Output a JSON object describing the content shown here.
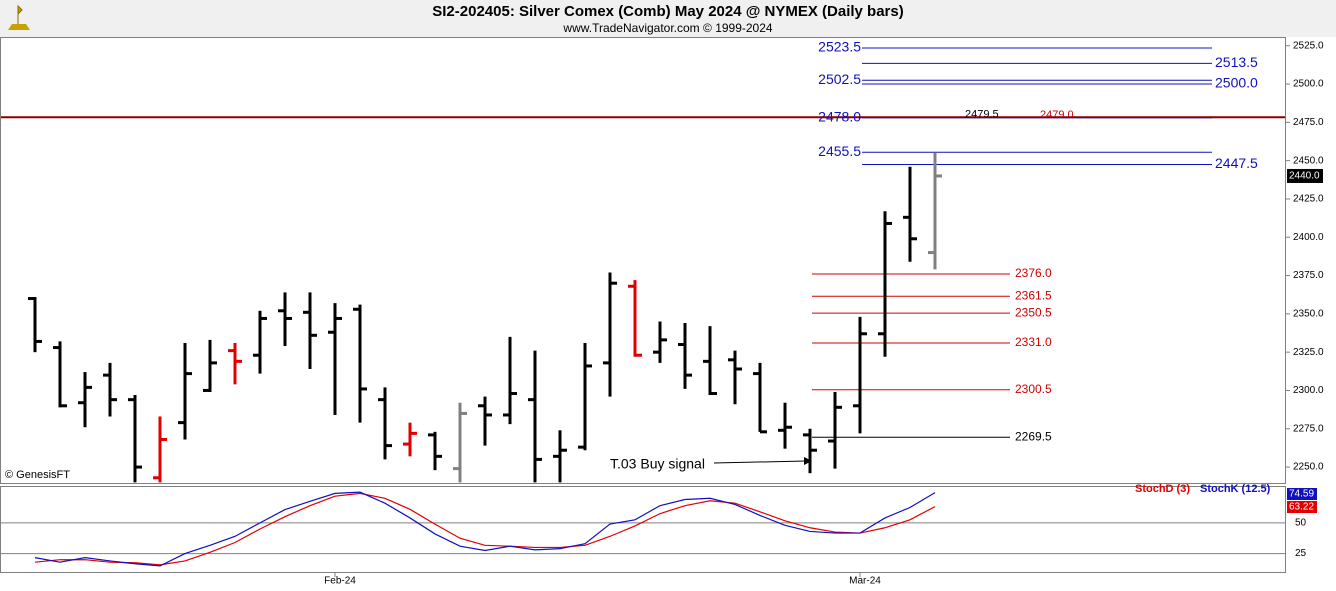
{
  "chart_data": [
    {
      "type": "ohlc",
      "title": "SI2-202405:  Silver Comex (Comb) May 2024 @ NYMEX  (Daily bars)",
      "subtitle": "www.TradeNavigator.com © 1999-2024",
      "source_note": "© GenesisFT",
      "categories": [
        null,
        null,
        null,
        null,
        null,
        null,
        null,
        null,
        null,
        null,
        null,
        null,
        "Feb-24",
        null,
        null,
        null,
        null,
        null,
        null,
        null,
        null,
        null,
        null,
        null,
        null,
        null,
        null,
        null,
        null,
        null,
        null,
        null,
        null,
        "Mar-24",
        null,
        null,
        null
      ],
      "open": [
        2360,
        2328,
        2292,
        2310,
        2294,
        2243,
        2279,
        2300,
        2326,
        2323,
        2352,
        2351,
        2338,
        2353,
        2294,
        2265,
        2271,
        2249,
        2290,
        2284,
        2294,
        2257,
        2263,
        2318,
        2368,
        2325,
        2330,
        2319,
        2320,
        2311,
        2274,
        2271,
        2267,
        2290,
        2337,
        2413,
        2390
      ],
      "high": [
        2361,
        2332,
        2312,
        2318,
        2297,
        2283,
        2331,
        2333,
        2331,
        2352,
        2364,
        2364,
        2357,
        2356,
        2302,
        2279,
        2273,
        2292,
        2296,
        2335,
        2326,
        2274,
        2331,
        2377,
        2372,
        2345,
        2344,
        2342,
        2326,
        2318,
        2292,
        2275,
        2299,
        2348,
        2417,
        2446,
        2455
      ],
      "low": [
        2325,
        2289,
        2276,
        2283,
        2240,
        2240,
        2268,
        2299,
        2304,
        2311,
        2329,
        2314,
        2284,
        2279,
        2255,
        2257,
        2248,
        2240,
        2264,
        2278,
        2240,
        2240,
        2261,
        2296,
        2322,
        2318,
        2301,
        2297,
        2291,
        2273,
        2262,
        2246,
        2249,
        2272,
        2322,
        2384,
        2379
      ],
      "close": [
        2332,
        2290,
        2302,
        2294,
        2250,
        2268,
        2311,
        2318,
        2319,
        2347,
        2347,
        2336,
        2347,
        2301,
        2264,
        2272,
        2257,
        2285,
        2284,
        2298,
        2255,
        2261,
        2316,
        2370,
        2323,
        2333,
        2310,
        2298,
        2314,
        2273,
        2276,
        2261,
        2289,
        2337,
        2409,
        2399,
        2440
      ],
      "colors": [
        "#000000",
        "#000000",
        "#000000",
        "#000000",
        "#000000",
        "#e00000",
        "#000000",
        "#000000",
        "#e00000",
        "#000000",
        "#000000",
        "#000000",
        "#000000",
        "#000000",
        "#000000",
        "#e00000",
        "#000000",
        "#808080",
        "#000000",
        "#000000",
        "#000000",
        "#000000",
        "#000000",
        "#000000",
        "#e00000",
        "#000000",
        "#000000",
        "#000000",
        "#000000",
        "#000000",
        "#000000",
        "#000000",
        "#000000",
        "#000000",
        "#000000",
        "#000000",
        "#808080"
      ],
      "last_label": {
        "value": 2440,
        "label": "2440.0"
      },
      "ylim": [
        2239.6,
        2530.7
      ],
      "yticks": [
        {
          "value": 2250,
          "label": "2250.0"
        },
        {
          "value": 2275,
          "label": "2275.0"
        },
        {
          "value": 2300,
          "label": "2300.0"
        },
        {
          "value": 2325,
          "label": "2325.0"
        },
        {
          "value": 2350,
          "label": "2350.0"
        },
        {
          "value": 2375,
          "label": "2375.0"
        },
        {
          "value": 2400,
          "label": "2400.0"
        },
        {
          "value": 2425,
          "label": "2425.0"
        },
        {
          "value": 2450,
          "label": "2450.0"
        },
        {
          "value": 2475,
          "label": "2475.0"
        },
        {
          "value": 2500,
          "label": "2500.0"
        },
        {
          "value": 2525,
          "label": "2525.0"
        }
      ],
      "levels_left": {
        "color": "#1010c0",
        "items": [
          {
            "value": 2523.5,
            "label": "2523.5"
          },
          {
            "value": 2502.5,
            "label": "2502.5"
          },
          {
            "value": 2478,
            "label": "2478.0"
          },
          {
            "value": 2455.5,
            "label": "2455.5"
          }
        ]
      },
      "levels_right": {
        "color": "#1010c0",
        "items": [
          {
            "value": 2513.5,
            "label": "2513.5"
          },
          {
            "value": 2500,
            "label": "2500.0"
          },
          {
            "value": 2447.5,
            "label": "2447.5"
          }
        ]
      },
      "levels_red": {
        "color": "#d00000",
        "items": [
          {
            "value": 2376,
            "label": "2376.0"
          },
          {
            "value": 2361.5,
            "label": "2361.5"
          },
          {
            "value": 2350.5,
            "label": "2350.5"
          },
          {
            "value": 2331,
            "label": "2331.0"
          },
          {
            "value": 2300.5,
            "label": "2300.5"
          }
        ]
      },
      "levels_black": {
        "color": "#000000",
        "items": [
          {
            "value": 2269.5,
            "label": "2269.5"
          }
        ]
      },
      "reference_line": {
        "value": 2478.3,
        "color": "#8b0000"
      },
      "markers": [
        {
          "value": 2479.5,
          "label": "2479.5",
          "color": "#000000"
        },
        {
          "value": 2479,
          "label": "2479.0",
          "color": "#d00000"
        }
      ],
      "annotation": "T.03 Buy signal"
    },
    {
      "type": "line",
      "series": [
        {
          "name": "StochD (3)",
          "color": "#e00000",
          "values": [
            18,
            20,
            20,
            18,
            17.5,
            15.8,
            19,
            26,
            34,
            45,
            55,
            64,
            71.7,
            74,
            70,
            61,
            49,
            37.5,
            31.7,
            31,
            30,
            30,
            31.7,
            39,
            47.5,
            57.5,
            64,
            68,
            66,
            59,
            51.7,
            46,
            42.5,
            41.7,
            46,
            52.5,
            63.22
          ]
        },
        {
          "name": "StochK (12.5)",
          "color": "#1010c0",
          "values": [
            21.7,
            18,
            21.7,
            19,
            16.7,
            15,
            25,
            31.7,
            39,
            50,
            60.8,
            67.5,
            74,
            75,
            66,
            54,
            41,
            31,
            27.5,
            31,
            28,
            29,
            33,
            49,
            52.5,
            64,
            69,
            70,
            65,
            56,
            48,
            43,
            41.7,
            41.7,
            54,
            62.5,
            74.59
          ]
        }
      ],
      "ylim": [
        10,
        80
      ],
      "yticks": [
        25,
        50
      ]
    }
  ]
}
